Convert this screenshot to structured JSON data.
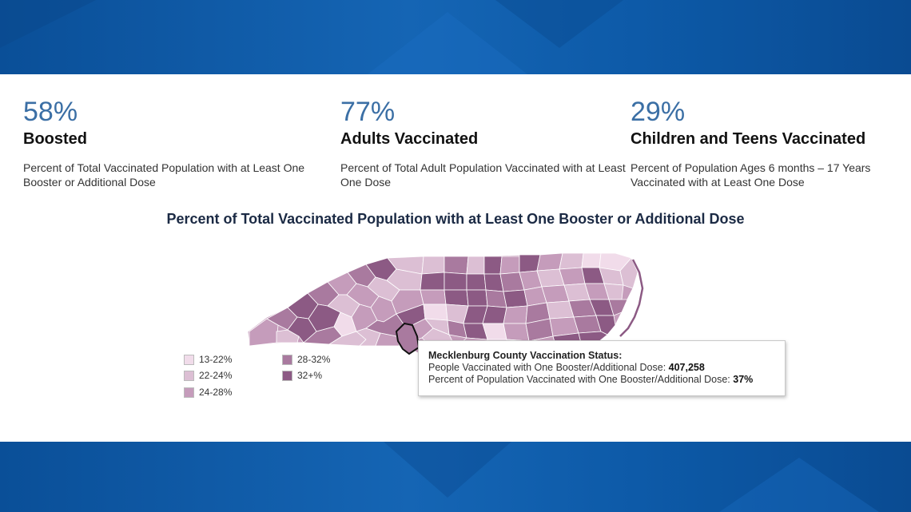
{
  "stats": [
    {
      "value": "58%",
      "title": "Boosted",
      "description": "Percent of Total Vaccinated Population with at Least One Booster or Additional Dose"
    },
    {
      "value": "77%",
      "title": "Adults Vaccinated",
      "description": "Percent of Total Adult Population Vaccinated with at Least One Dose"
    },
    {
      "value": "29%",
      "title": "Children and Teens Vaccinated",
      "description": "Percent of Population Ages 6 months – 17 Years Vaccinated with at Least One Dose"
    }
  ],
  "map": {
    "title": "Percent of Total Vaccinated Population with at Least One Booster or Additional Dose",
    "highlighted_county": "Mecklenburg",
    "legend": [
      {
        "label": "13-22%",
        "color": "#f1dcea"
      },
      {
        "label": "22-24%",
        "color": "#dcbfd4"
      },
      {
        "label": "24-28%",
        "color": "#c59cbb"
      },
      {
        "label": "28-32%",
        "color": "#a97a9f"
      },
      {
        "label": "32+%",
        "color": "#8c5a84"
      }
    ]
  },
  "tooltip": {
    "title": "Mecklenburg County Vaccination Status:",
    "line1_label": "People Vaccinated with One Booster/Additional Dose: ",
    "line1_value": "407,258",
    "line2_label": "Percent of Population Vaccinated with One Booster/Additional Dose: ",
    "line2_value": "37%"
  }
}
